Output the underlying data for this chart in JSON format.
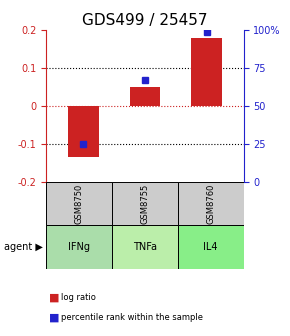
{
  "title": "GDS499 / 25457",
  "samples": [
    "GSM8750",
    "GSM8755",
    "GSM8760"
  ],
  "agents": [
    "IFNg",
    "TNFa",
    "IL4"
  ],
  "log_ratios": [
    -0.135,
    0.05,
    0.18
  ],
  "percentile_ranks": [
    0.25,
    0.67,
    0.99
  ],
  "bar_color": "#cc2222",
  "dot_color": "#2222cc",
  "ylim_left": [
    -0.2,
    0.2
  ],
  "ylim_right": [
    0.0,
    1.0
  ],
  "yticks_left": [
    -0.2,
    -0.1,
    0.0,
    0.1,
    0.2
  ],
  "ytick_labels_left": [
    "-0.2",
    "-0.1",
    "0",
    "0.1",
    "0.2"
  ],
  "yticks_right": [
    0.0,
    0.25,
    0.5,
    0.75,
    1.0
  ],
  "ytick_labels_right": [
    "0",
    "25",
    "50",
    "75",
    "100%"
  ],
  "agent_colors": [
    "#aaddaa",
    "#bbeeaa",
    "#88ee88"
  ],
  "sample_bg_color": "#cccccc",
  "hline_color": "#cc2222",
  "title_fontsize": 11,
  "tick_fontsize": 7,
  "label_fontsize": 7,
  "bar_width": 0.5
}
